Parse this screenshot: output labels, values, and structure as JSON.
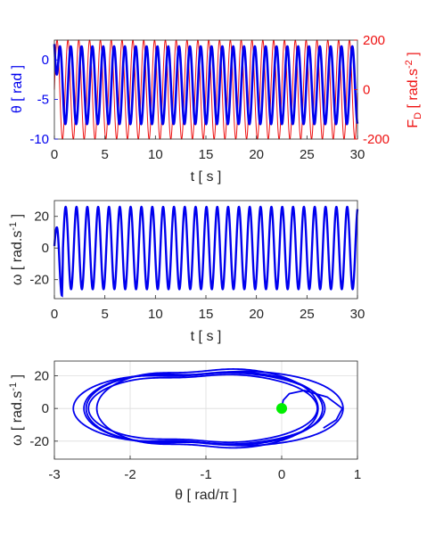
{
  "colors": {
    "theta": "#0000ee",
    "force": "#ee1111",
    "axis": "#262626",
    "grid": "#dcdcdc",
    "marker": "#00ee00"
  },
  "chart_data": [
    {
      "type": "line",
      "xlabel": "t  [ s ]",
      "ylabel_left": "θ  [ rad ]",
      "ylabel_right": "F_D [ rad.s^-2 ]",
      "xlim": [
        0,
        30
      ],
      "xticks": [
        "0",
        "5",
        "10",
        "15",
        "20",
        "25",
        "30"
      ],
      "ylim_left": [
        -10,
        2.5
      ],
      "yticks_left": [
        "-10",
        "-5",
        "0"
      ],
      "ylim_right": [
        -200,
        200
      ],
      "yticks_right": [
        "-200",
        "0",
        "200"
      ],
      "grid": false,
      "theta_series": {
        "axis": "left",
        "center": -3.2,
        "amplitude": 4.9,
        "cycles_per_s": 0.933,
        "start": 2.0
      },
      "force_series": {
        "axis": "right",
        "amplitude": 200,
        "cycles_per_s": 0.933
      }
    },
    {
      "type": "line",
      "xlabel": "t  [ s ]",
      "ylabel": "ω  [ rad.s^-1 ]",
      "xlim": [
        0,
        30
      ],
      "xticks": [
        "0",
        "5",
        "10",
        "15",
        "20",
        "25",
        "30"
      ],
      "ylim": [
        -32,
        30
      ],
      "yticks": [
        "-20",
        "0",
        "20"
      ],
      "grid": false,
      "omega_series": {
        "amplitude": 26,
        "cycles_per_s": 0.933,
        "start": 0,
        "initial_peak": 13,
        "initial_trough": -30
      }
    },
    {
      "type": "line",
      "xlabel": "θ  [ rad/π ]",
      "ylabel": "ω  [ rad.s^-1 ]",
      "xlim": [
        -3,
        1
      ],
      "xticks": [
        "-3",
        "-2",
        "-1",
        "0",
        "1"
      ],
      "ylim": [
        -31,
        29
      ],
      "yticks": [
        "-20",
        "0",
        "20"
      ],
      "grid": true,
      "start_point": {
        "theta": 0,
        "omega": 0
      },
      "orbit": {
        "theta_center": -1.02,
        "theta_amplitude": 1.56,
        "omega_amplitude": 25
      }
    }
  ]
}
